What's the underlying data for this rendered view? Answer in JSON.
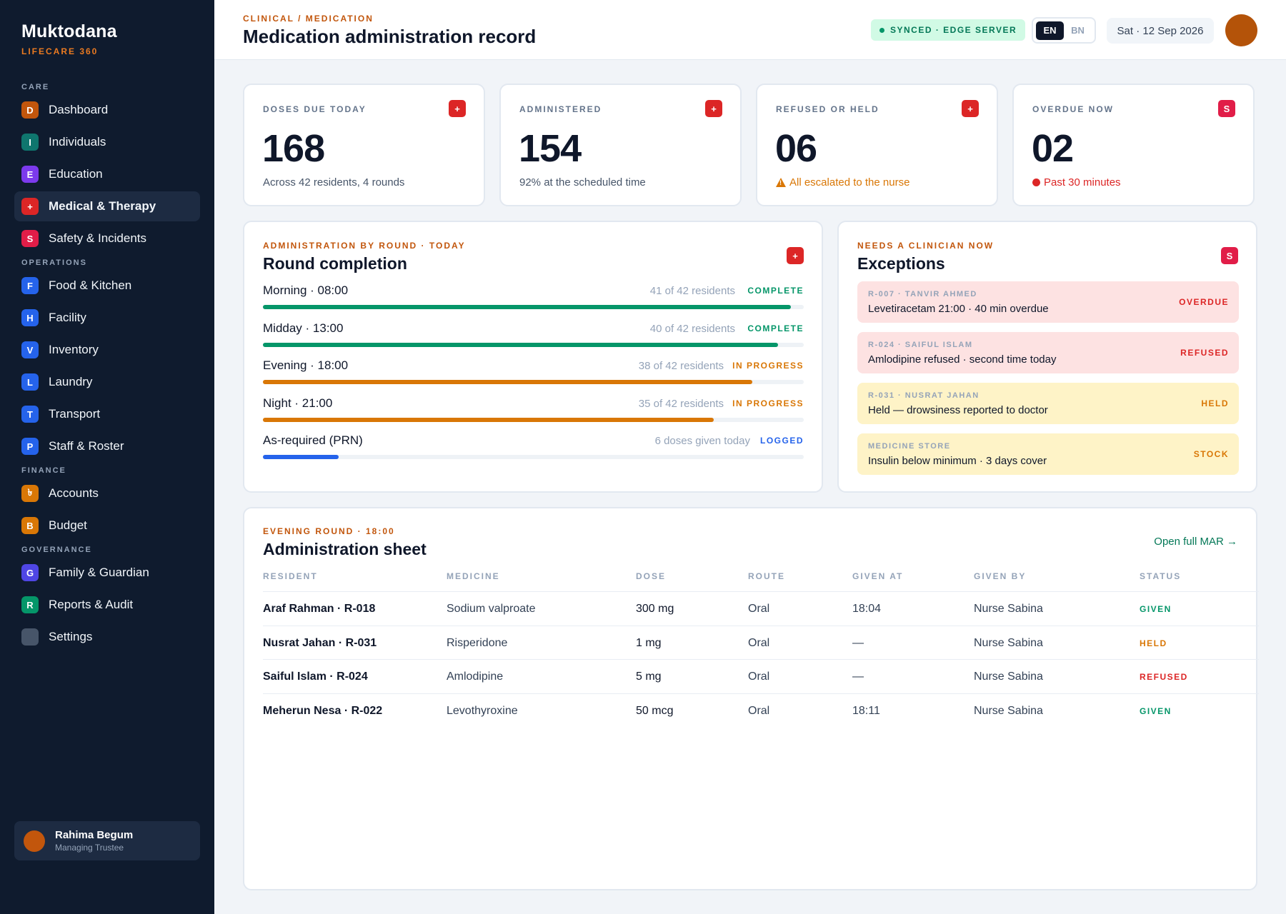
{
  "app": {
    "name": "Muktodana",
    "subtitle": "LIFECARE 360"
  },
  "sidebar": {
    "sections": [
      {
        "label": "CARE",
        "items": [
          {
            "key": "dashboard",
            "badge": "D",
            "label": "Dashboard",
            "color": "#c2560c"
          },
          {
            "key": "individuals",
            "badge": "I",
            "label": "Individuals",
            "color": "#0f766e"
          },
          {
            "key": "education",
            "badge": "E",
            "label": "Education",
            "color": "#7c3aed"
          },
          {
            "key": "medical",
            "badge": "+",
            "label": "Medical & Therapy",
            "color": "#dc2626",
            "active": true
          },
          {
            "key": "safety",
            "badge": "S",
            "label": "Safety & Incidents",
            "color": "#e11d48"
          }
        ]
      },
      {
        "label": "OPERATIONS",
        "items": [
          {
            "key": "food",
            "badge": "F",
            "label": "Food & Kitchen",
            "color": "#2563eb"
          },
          {
            "key": "facility",
            "badge": "H",
            "label": "Facility",
            "color": "#2563eb"
          },
          {
            "key": "inventory",
            "badge": "V",
            "label": "Inventory",
            "color": "#2563eb"
          },
          {
            "key": "laundry",
            "badge": "L",
            "label": "Laundry",
            "color": "#2563eb"
          },
          {
            "key": "transport",
            "badge": "T",
            "label": "Transport",
            "color": "#2563eb"
          },
          {
            "key": "staff",
            "badge": "P",
            "label": "Staff & Roster",
            "color": "#2563eb"
          }
        ]
      },
      {
        "label": "FINANCE",
        "items": [
          {
            "key": "accounts",
            "badge": "৳",
            "label": "Accounts",
            "color": "#d97706"
          },
          {
            "key": "budget",
            "badge": "B",
            "label": "Budget",
            "color": "#d97706"
          }
        ]
      },
      {
        "label": "GOVERNANCE",
        "items": [
          {
            "key": "family",
            "badge": "G",
            "label": "Family & Guardian",
            "color": "#4f46e5"
          },
          {
            "key": "reports",
            "badge": "R",
            "label": "Reports & Audit",
            "color": "#059669"
          },
          {
            "key": "settings",
            "badge": "",
            "label": "Settings",
            "color": "#475569"
          }
        ]
      }
    ]
  },
  "user": {
    "name": "Rahima Begum",
    "role": "Managing Trustee"
  },
  "header": {
    "breadcrumb": "CLINICAL / MEDICATION",
    "title": "Medication administration record",
    "sync": "SYNCED · EDGE SERVER",
    "lang_active": "EN",
    "lang_inactive": "BN",
    "date": "Sat · 12 Sep 2026"
  },
  "kpis": [
    {
      "label": "DOSES DUE TODAY",
      "value": "168",
      "sub": "Across 42 residents, 4 rounds",
      "icon": "+",
      "tone": "neutral"
    },
    {
      "label": "ADMINISTERED",
      "value": "154",
      "sub": "92% at the scheduled time",
      "icon": "+",
      "tone": "neutral"
    },
    {
      "label": "REFUSED OR HELD",
      "value": "06",
      "sub": "All escalated to the nurse",
      "icon": "+",
      "tone": "amber"
    },
    {
      "label": "OVERDUE NOW",
      "value": "02",
      "sub": "Past 30 minutes",
      "icon": "S",
      "tone": "red"
    }
  ],
  "rounds": {
    "eyebrow": "ADMINISTRATION BY ROUND · TODAY",
    "title": "Round completion",
    "icon": "+",
    "items": [
      {
        "name": "Morning · 08:00",
        "count": "41 of 42 residents",
        "status": "COMPLETE",
        "progress": 0.976,
        "color": "#059669",
        "status_color": "#059669"
      },
      {
        "name": "Midday · 13:00",
        "count": "40 of 42 residents",
        "status": "COMPLETE",
        "progress": 0.952,
        "color": "#059669",
        "status_color": "#059669"
      },
      {
        "name": "Evening · 18:00",
        "count": "38 of 42 residents",
        "status": "IN PROGRESS",
        "progress": 0.905,
        "color": "#d97706",
        "status_color": "#d97706"
      },
      {
        "name": "Night · 21:00",
        "count": "35 of 42 residents",
        "status": "IN PROGRESS",
        "progress": 0.833,
        "color": "#d97706",
        "status_color": "#d97706"
      },
      {
        "name": "As-required (PRN)",
        "count": "6 doses given today",
        "status": "LOGGED",
        "progress": 0.14,
        "color": "#2563eb",
        "status_color": "#2563eb"
      }
    ]
  },
  "exceptions": {
    "eyebrow": "NEEDS A CLINICIAN NOW",
    "title": "Exceptions",
    "icon": "S",
    "items": [
      {
        "meta": "R-007 · TANVIR AHMED",
        "text": "Levetiracetam 21:00 · 40 min overdue",
        "tag": "OVERDUE",
        "tone": "red"
      },
      {
        "meta": "R-024 · SAIFUL ISLAM",
        "text": "Amlodipine refused · second time today",
        "tag": "REFUSED",
        "tone": "red"
      },
      {
        "meta": "R-031 · NUSRAT JAHAN",
        "text": "Held — drowsiness reported to doctor",
        "tag": "HELD",
        "tone": "amber"
      },
      {
        "meta": "MEDICINE STORE",
        "text": "Insulin below minimum · 3 days cover",
        "tag": "STOCK",
        "tone": "amber"
      }
    ]
  },
  "sheet": {
    "eyebrow": "EVENING ROUND · 18:00",
    "title": "Administration sheet",
    "link": "Open full MAR →",
    "columns": [
      "RESIDENT",
      "MEDICINE",
      "DOSE",
      "ROUTE",
      "GIVEN AT",
      "GIVEN BY",
      "STATUS"
    ],
    "rows": [
      {
        "resident": "Araf Rahman · R-018",
        "medicine": "Sodium valproate",
        "dose": "300 mg",
        "route": "Oral",
        "given_at": "18:04",
        "given_by": "Nurse Sabina",
        "status": "GIVEN",
        "status_color": "#059669"
      },
      {
        "resident": "Nusrat Jahan · R-031",
        "medicine": "Risperidone",
        "dose": "1 mg",
        "route": "Oral",
        "given_at": "—",
        "given_by": "Nurse Sabina",
        "status": "HELD",
        "status_color": "#d97706"
      },
      {
        "resident": "Saiful Islam · R-024",
        "medicine": "Amlodipine",
        "dose": "5 mg",
        "route": "Oral",
        "given_at": "—",
        "given_by": "Nurse Sabina",
        "status": "REFUSED",
        "status_color": "#dc2626"
      },
      {
        "resident": "Meherun Nesa · R-022",
        "medicine": "Levothyroxine",
        "dose": "50 mcg",
        "route": "Oral",
        "given_at": "18:11",
        "given_by": "Nurse Sabina",
        "status": "GIVEN",
        "status_color": "#059669"
      }
    ]
  }
}
